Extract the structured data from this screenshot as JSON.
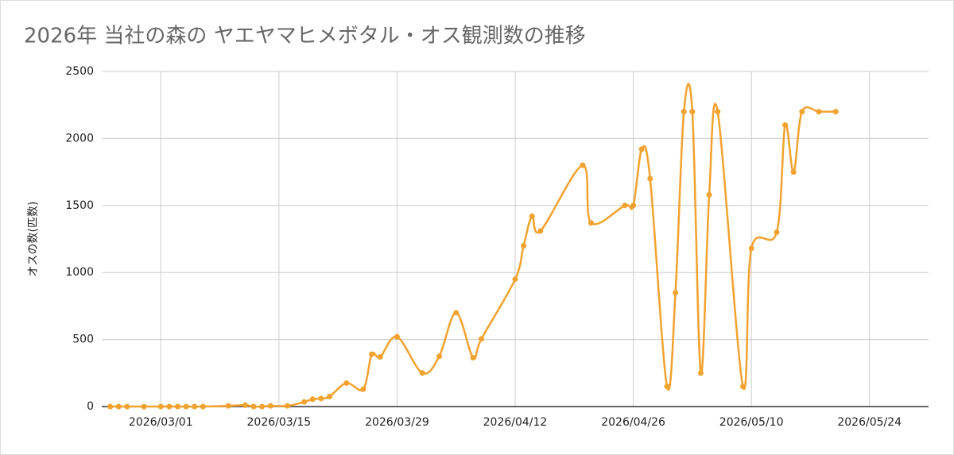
{
  "chart_data": {
    "type": "line",
    "title": "2026年 当社の森の ヤエヤマヒメボタル・オス観測数の推移",
    "y_label": "オスの数(匹数)",
    "x": [
      "2026/02/23",
      "2026/02/24",
      "2026/02/25",
      "2026/02/27",
      "2026/03/01",
      "2026/03/02",
      "2026/03/03",
      "2026/03/04",
      "2026/03/05",
      "2026/03/06",
      "2026/03/09",
      "2026/03/11",
      "2026/03/12",
      "2026/03/13",
      "2026/03/14",
      "2026/03/16",
      "2026/03/18",
      "2026/03/19",
      "2026/03/20",
      "2026/03/21",
      "2026/03/23",
      "2026/03/25",
      "2026/03/26",
      "2026/03/27",
      "2026/03/29",
      "2026/04/01",
      "2026/04/03",
      "2026/04/05",
      "2026/04/07",
      "2026/04/08",
      "2026/04/12",
      "2026/04/13",
      "2026/04/14",
      "2026/04/15",
      "2026/04/20",
      "2026/04/21",
      "2026/04/25",
      "2026/04/26",
      "2026/04/27",
      "2026/04/28",
      "2026/04/30",
      "2026/05/01",
      "2026/05/02",
      "2026/05/03",
      "2026/05/04",
      "2026/05/05",
      "2026/05/06",
      "2026/05/09",
      "2026/05/10",
      "2026/05/13",
      "2026/05/14",
      "2026/05/15",
      "2026/05/16",
      "2026/05/18",
      "2026/05/20"
    ],
    "series": [
      {
        "name": "オスの数(匹数)",
        "color": "#f2a22e",
        "values": [
          0,
          0,
          0,
          0,
          0,
          0,
          0,
          0,
          0,
          0,
          5,
          10,
          0,
          0,
          5,
          5,
          35,
          55,
          60,
          75,
          175,
          130,
          390,
          370,
          520,
          250,
          375,
          700,
          365,
          505,
          950,
          1200,
          1420,
          1310,
          1800,
          1370,
          1500,
          1500,
          1920,
          1700,
          150,
          850,
          2200,
          2200,
          250,
          1580,
          2200,
          150,
          1180,
          1300,
          2100,
          1750,
          2200,
          2200,
          2200
        ]
      }
    ],
    "xlim": [
      "2026/02/22",
      "2026/05/31"
    ],
    "xticks": [
      "2026/03/01",
      "2026/03/15",
      "2026/03/29",
      "2026/04/12",
      "2026/04/26",
      "2026/05/10",
      "2026/05/24"
    ],
    "ylim": [
      0,
      2500
    ],
    "yticks": [
      0,
      500,
      1000,
      1500,
      2000,
      2500
    ],
    "grid": true
  }
}
